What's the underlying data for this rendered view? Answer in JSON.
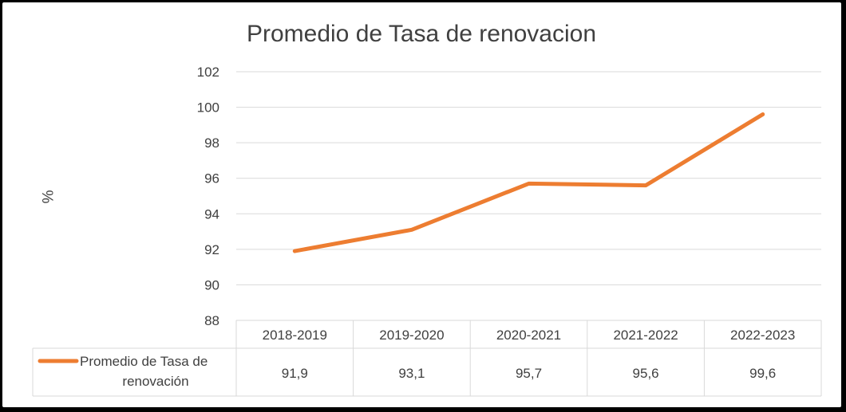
{
  "chart_data": {
    "type": "line",
    "title": "Promedio de Tasa de renovacion",
    "ylabel": "%",
    "xlabel": "",
    "categories": [
      "2018-2019",
      "2019-2020",
      "2020-2021",
      "2021-2022",
      "2022-2023"
    ],
    "series": [
      {
        "name": "Promedio de Tasa de renovación",
        "values": [
          91.9,
          93.1,
          95.7,
          95.6,
          99.6
        ],
        "value_labels": [
          "91,9",
          "93,1",
          "95,7",
          "95,6",
          "99,6"
        ],
        "color": "#ED7D31"
      }
    ],
    "ylim": [
      88,
      102
    ],
    "yticks": [
      88,
      90,
      92,
      94,
      96,
      98,
      100,
      102
    ],
    "grid": true,
    "legend": "data-table"
  }
}
